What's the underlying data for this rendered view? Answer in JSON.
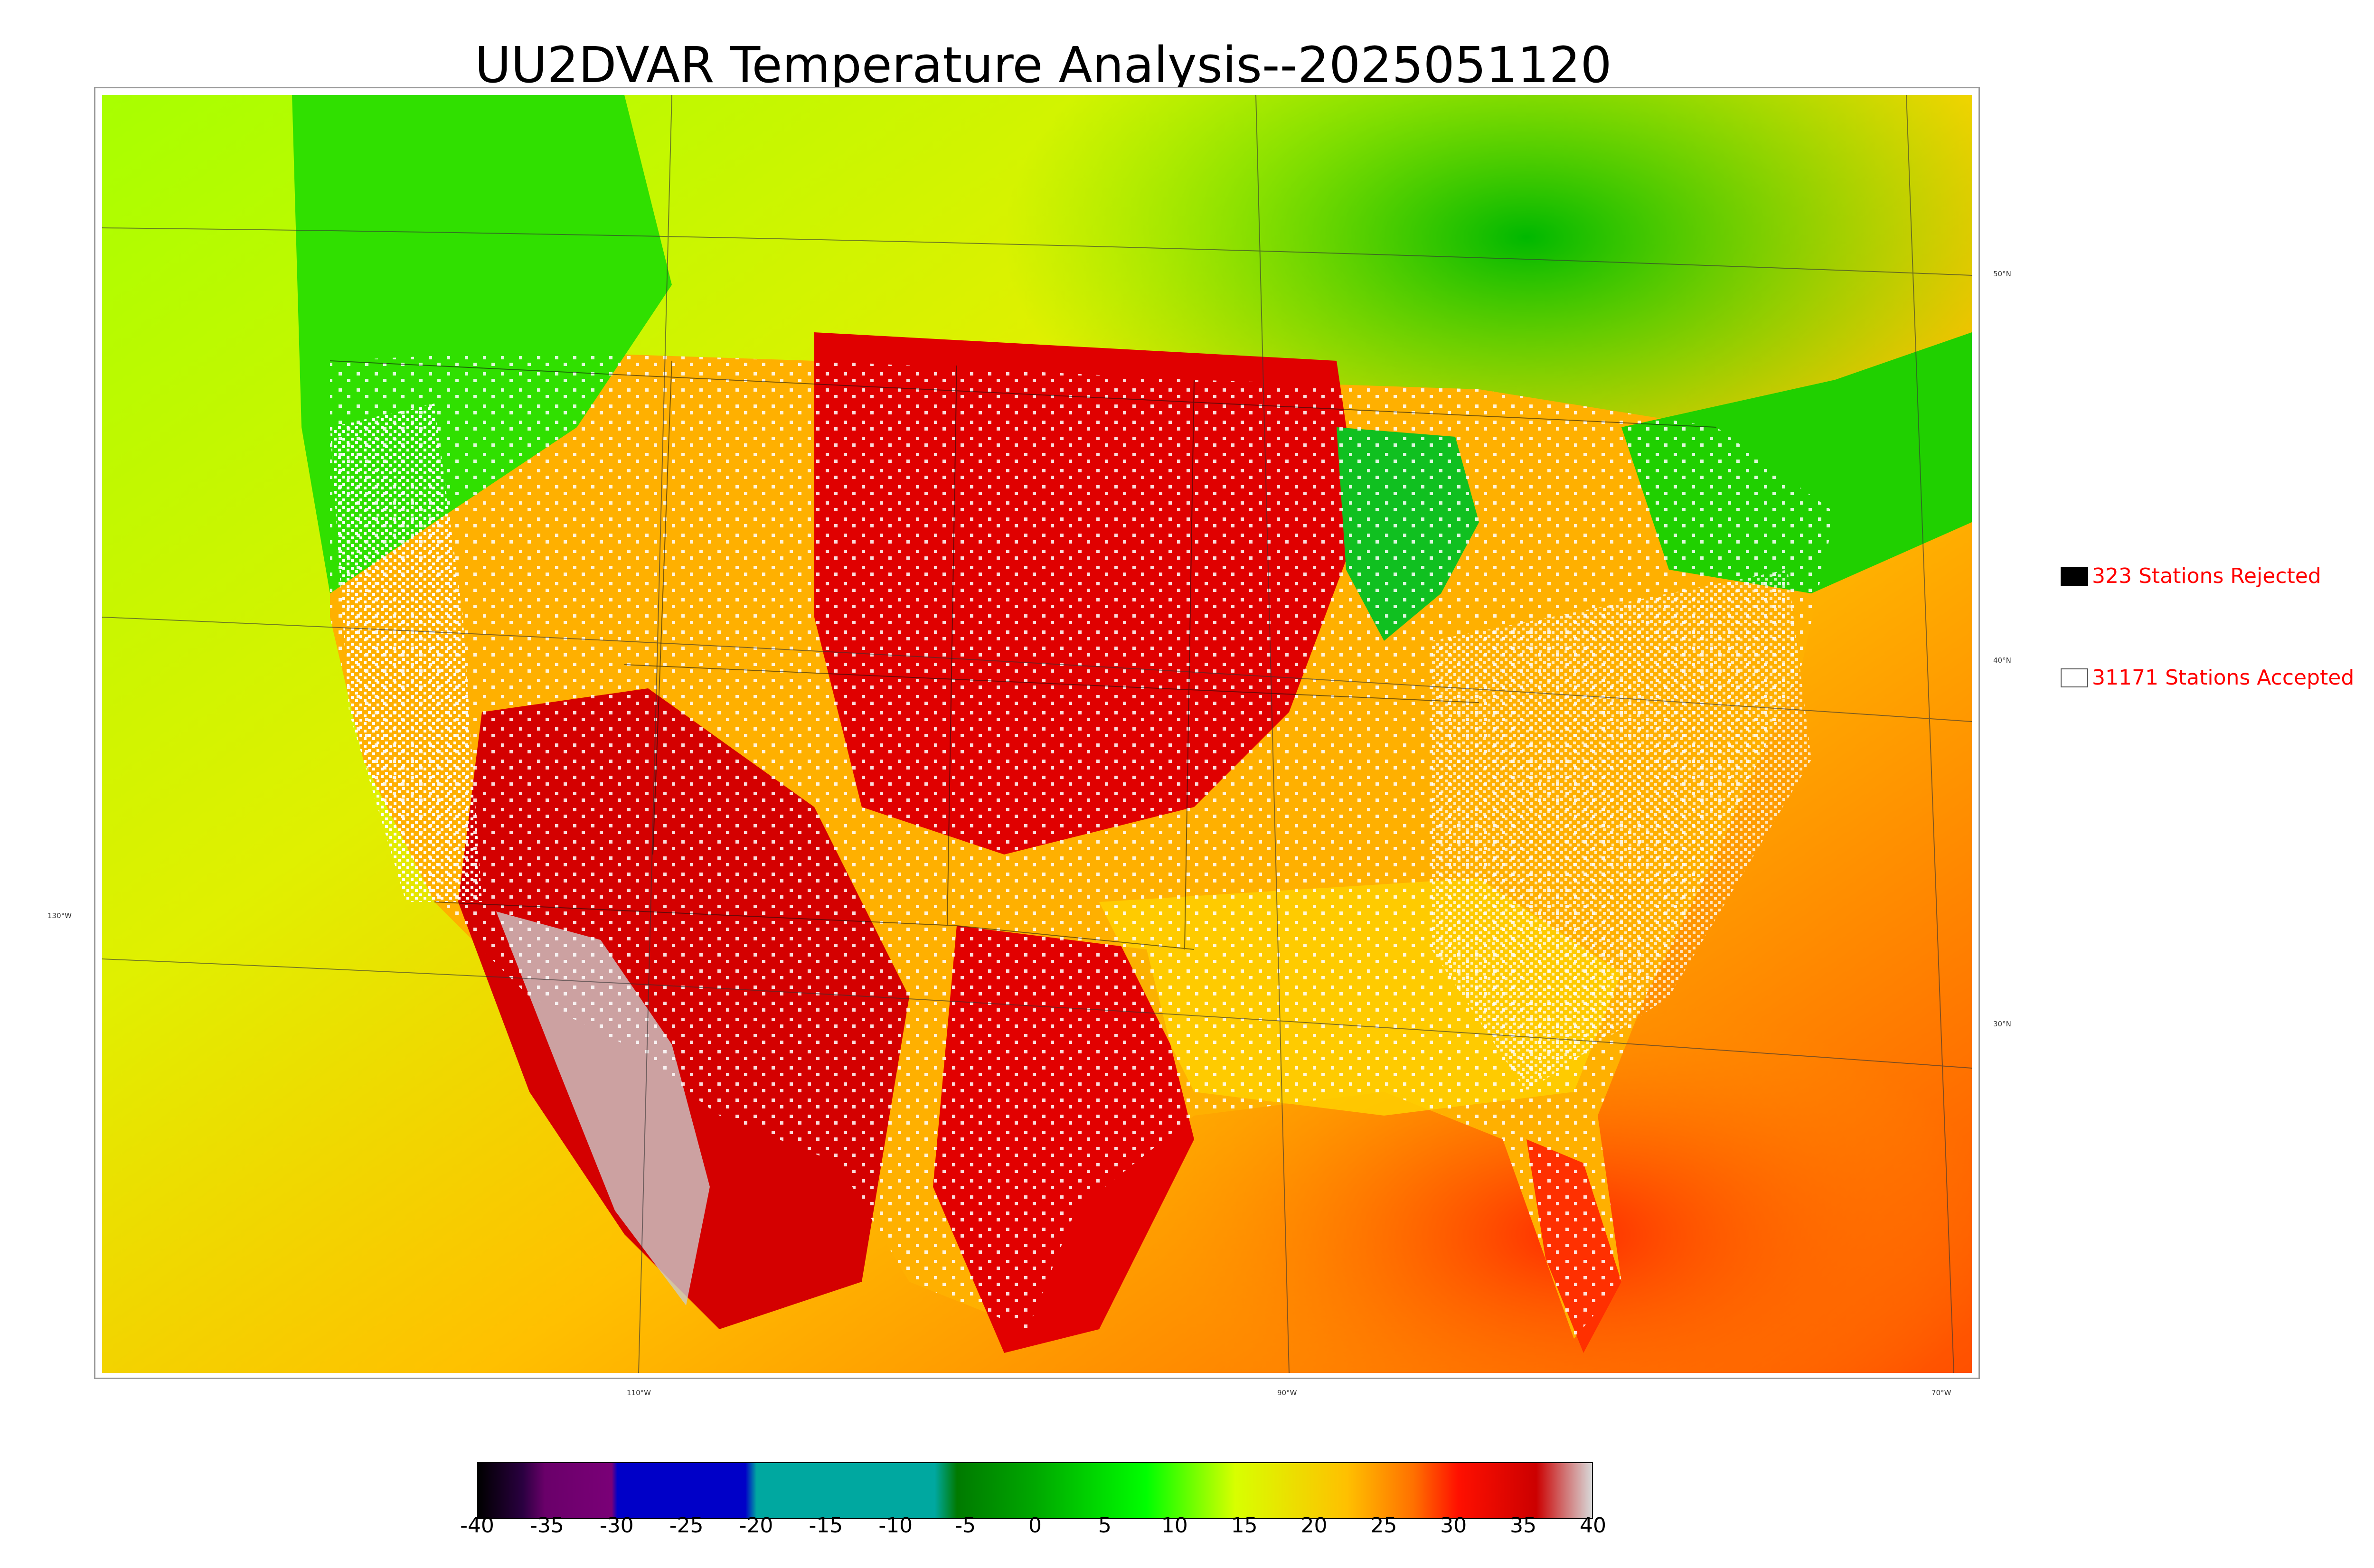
{
  "title": "UU2DVAR Temperature Analysis--2025051120",
  "map": {
    "longitude_labels": [
      "130°W",
      "110°W",
      "90°W",
      "70°W"
    ],
    "latitude_labels": [
      "50°N",
      "40°N",
      "30°N"
    ]
  },
  "legend": {
    "rejected": {
      "text": "323 Stations Rejected",
      "swatch_color": "#000000"
    },
    "accepted": {
      "text": "31171 Stations Accepted",
      "swatch_color": "#ffffff"
    }
  },
  "colorbar": {
    "ticks": [
      "-40",
      "-35",
      "-30",
      "-25",
      "-20",
      "-15",
      "-10",
      "-5",
      "0",
      "5",
      "10",
      "15",
      "20",
      "25",
      "30",
      "35",
      "40"
    ],
    "colors": [
      "#000000",
      "#1a0033",
      "#6a006a",
      "#7a0077",
      "#0000c8",
      "#0000c8",
      "#00a8a0",
      "#00a8a0",
      "#008800",
      "#00d000",
      "#00ff00",
      "#c8ff00",
      "#ffd000",
      "#ff9000",
      "#ff2000",
      "#e00000",
      "#b8b8b8"
    ]
  },
  "colors": {
    "ocean_cool": "#c8f000",
    "ocean_warm": "#ffa000",
    "hot": "#e00000",
    "very_hot": "#cc0000",
    "cool_green": "#00d000",
    "label_red": "#ff0000"
  }
}
